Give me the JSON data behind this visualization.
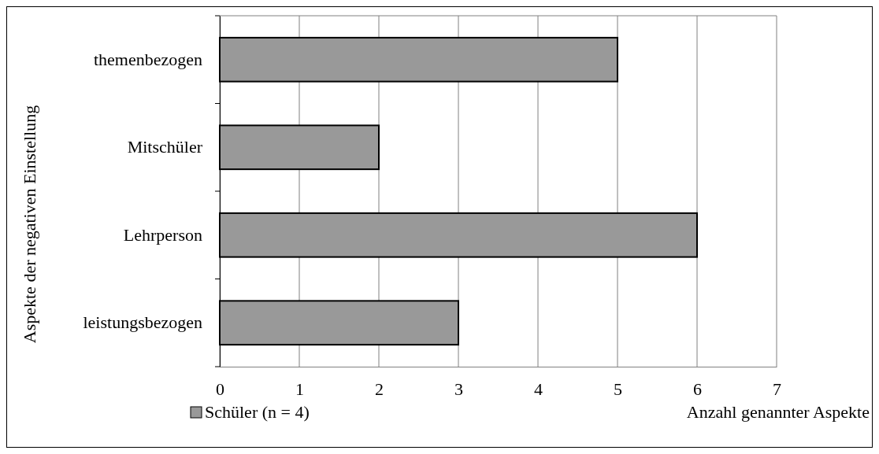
{
  "chart_data": {
    "type": "bar",
    "orientation": "horizontal",
    "categories": [
      "themenbezogen",
      "Mitschüler",
      "Lehrperson",
      "leistungsbezogen"
    ],
    "series": [
      {
        "name": "Schüler (n = 4)",
        "color": "#999999",
        "values": [
          5,
          2,
          6,
          3
        ]
      }
    ],
    "xlim": [
      0,
      7
    ],
    "xticks": [
      0,
      1,
      2,
      3,
      4,
      5,
      6,
      7
    ],
    "grid": "x",
    "legend": "bottom left",
    "xlabel": "Anzahl genannter Aspekte",
    "ylabel": "Aspekte der negativen Einstellung"
  }
}
